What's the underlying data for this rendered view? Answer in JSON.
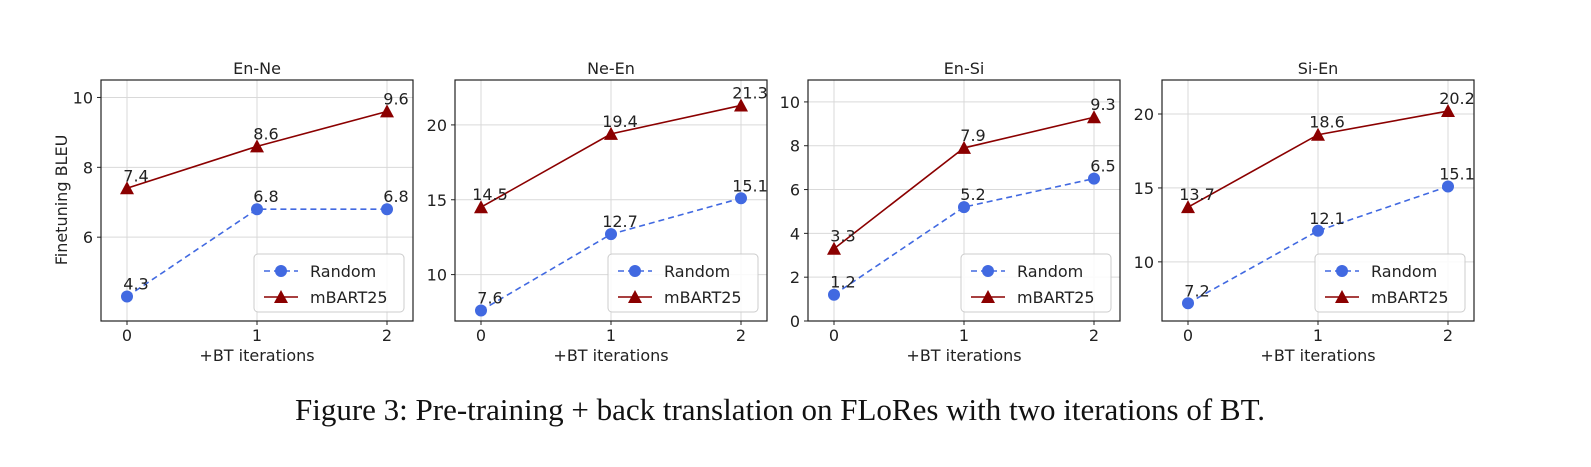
{
  "figure": {
    "caption": "Figure 3: Pre-training + back translation on FLoRes with two iterations of BT.",
    "shared_ylabel": "Finetuning BLEU"
  },
  "colors": {
    "random": "#4169e1",
    "mbart": "#8b0000",
    "grid": "#d9d9d9",
    "axis": "#222222"
  },
  "chart_data": [
    {
      "type": "line",
      "title": "En-Ne",
      "xlabel": "+BT iterations",
      "ylabel": "Finetuning BLEU",
      "x": [
        0,
        1,
        2
      ],
      "ylim": [
        3.6,
        10.5
      ],
      "yticks": [
        6,
        8,
        10
      ],
      "legend": "lower-right",
      "grid": true,
      "series": [
        {
          "name": "Random",
          "values": [
            4.3,
            6.8,
            6.8
          ],
          "labels": [
            "4.3",
            "6.8",
            "6.8"
          ],
          "marker": "circle",
          "linestyle": "dashed",
          "color": "#4169e1"
        },
        {
          "name": "mBART25",
          "values": [
            7.4,
            8.6,
            9.6
          ],
          "labels": [
            "7.4",
            "8.6",
            "9.6"
          ],
          "marker": "triangle",
          "linestyle": "solid",
          "color": "#8b0000"
        }
      ]
    },
    {
      "type": "line",
      "title": "Ne-En",
      "xlabel": "+BT iterations",
      "ylabel": "",
      "x": [
        0,
        1,
        2
      ],
      "ylim": [
        6.9,
        23.0
      ],
      "yticks": [
        10,
        15,
        20
      ],
      "legend": "lower-right",
      "grid": true,
      "series": [
        {
          "name": "Random",
          "values": [
            7.6,
            12.7,
            15.1
          ],
          "labels": [
            "7.6",
            "12.7",
            "15.1"
          ],
          "marker": "circle",
          "linestyle": "dashed",
          "color": "#4169e1"
        },
        {
          "name": "mBART25",
          "values": [
            14.5,
            19.4,
            21.3
          ],
          "labels": [
            "14.5",
            "19.4",
            "21.3"
          ],
          "marker": "triangle",
          "linestyle": "solid",
          "color": "#8b0000"
        }
      ]
    },
    {
      "type": "line",
      "title": "En-Si",
      "xlabel": "+BT iterations",
      "ylabel": "",
      "x": [
        0,
        1,
        2
      ],
      "ylim": [
        0,
        11
      ],
      "yticks": [
        0,
        2,
        4,
        6,
        8,
        10
      ],
      "legend": "lower-right",
      "grid": true,
      "series": [
        {
          "name": "Random",
          "values": [
            1.2,
            5.2,
            6.5
          ],
          "labels": [
            "1.2",
            "5.2",
            "6.5"
          ],
          "marker": "circle",
          "linestyle": "dashed",
          "color": "#4169e1"
        },
        {
          "name": "mBART25",
          "values": [
            3.3,
            7.9,
            9.3
          ],
          "labels": [
            "3.3",
            "7.9",
            "9.3"
          ],
          "marker": "triangle",
          "linestyle": "solid",
          "color": "#8b0000"
        }
      ]
    },
    {
      "type": "line",
      "title": "Si-En",
      "xlabel": "+BT iterations",
      "ylabel": "",
      "x": [
        0,
        1,
        2
      ],
      "ylim": [
        6.0,
        22.3
      ],
      "yticks": [
        10,
        15,
        20
      ],
      "legend": "lower-right",
      "grid": true,
      "series": [
        {
          "name": "Random",
          "values": [
            7.2,
            12.1,
            15.1
          ],
          "labels": [
            "7.2",
            "12.1",
            "15.1"
          ],
          "marker": "circle",
          "linestyle": "dashed",
          "color": "#4169e1"
        },
        {
          "name": "mBART25",
          "values": [
            13.7,
            18.6,
            20.2
          ],
          "labels": [
            "13.7",
            "18.6",
            "20.2"
          ],
          "marker": "triangle",
          "linestyle": "solid",
          "color": "#8b0000"
        }
      ]
    }
  ]
}
